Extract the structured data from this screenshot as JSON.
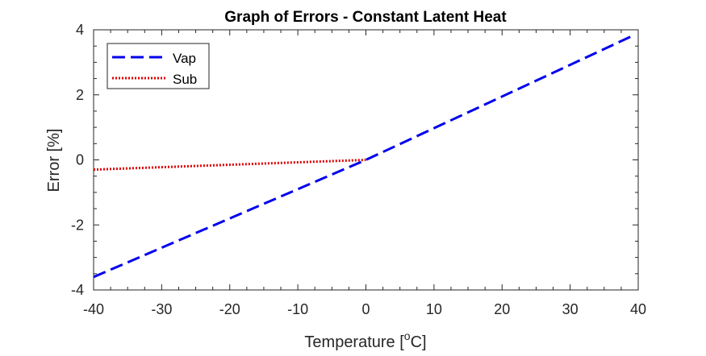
{
  "chart_data": {
    "type": "line",
    "title": "Graph of Errors - Constant Latent Heat",
    "xlabel": "Temperature [",
    "xlabel_sup": "o",
    "xlabel_tail": "C]",
    "ylabel": "Error [%]",
    "xlim": [
      -40,
      40
    ],
    "ylim": [
      -4,
      4
    ],
    "xticks": [
      -40,
      -30,
      -20,
      -10,
      0,
      10,
      20,
      30,
      40
    ],
    "yticks": [
      -4,
      -2,
      0,
      2,
      4
    ],
    "grid": false,
    "legend_position": "top-left",
    "series": [
      {
        "name": "Vap",
        "style": "dashed",
        "color": "#0000ee",
        "x": [
          -40,
          0,
          39
        ],
        "y": [
          -3.6,
          0.0,
          3.8
        ]
      },
      {
        "name": "Sub",
        "style": "dotted",
        "color": "#dd0000",
        "x": [
          -40,
          0
        ],
        "y": [
          -0.3,
          0.0
        ]
      }
    ]
  }
}
